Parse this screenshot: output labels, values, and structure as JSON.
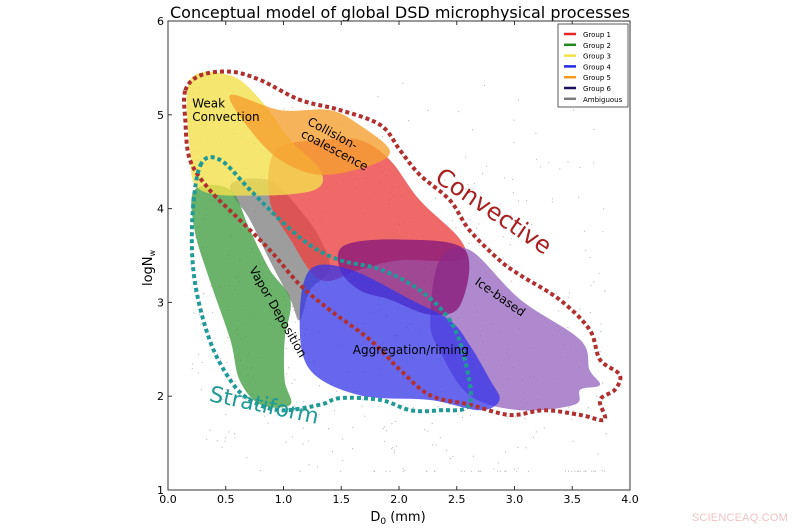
{
  "chart_data": {
    "type": "area",
    "title": "Conceptual model of global DSD microphysical processes",
    "xlabel": "D",
    "xlabel_sub": "0",
    "xlabel_unit": " (mm)",
    "ylabel": "logN",
    "ylabel_sub": "w",
    "xlim": [
      0.0,
      4.0
    ],
    "ylim": [
      1,
      6
    ],
    "xticks": [
      "0.0",
      "0.5",
      "1.0",
      "1.5",
      "2.0",
      "2.5",
      "3.0",
      "3.5",
      "4.0"
    ],
    "yticks": [
      "1",
      "2",
      "3",
      "4",
      "5",
      "6"
    ],
    "legend": {
      "placement": "top-right",
      "entries": [
        {
          "label": "Group 1",
          "color": "#e8282a"
        },
        {
          "label": "Group 2",
          "color": "#1e8a1e"
        },
        {
          "label": "Group 3",
          "color": "#f2e24a"
        },
        {
          "label": "Group 4",
          "color": "#2626e6"
        },
        {
          "label": "Group 5",
          "color": "#f59a1c"
        },
        {
          "label": "Group 6",
          "color": "#1a1060"
        },
        {
          "label": "Ambiguous",
          "color": "#7a7a7a"
        }
      ]
    },
    "regions": [
      {
        "name": "ambiguous",
        "color": "#8c8c8c",
        "opacity": 0.85,
        "points": [
          [
            0.54,
            4.25
          ],
          [
            0.88,
            4.3
          ],
          [
            1.14,
            3.99
          ],
          [
            1.32,
            3.67
          ],
          [
            1.4,
            3.35
          ],
          [
            1.23,
            3.13
          ],
          [
            1.14,
            2.81
          ],
          [
            1.06,
            3.03
          ],
          [
            0.88,
            3.45
          ],
          [
            0.71,
            3.88
          ]
        ]
      },
      {
        "name": "group-2",
        "color": "#3a9a3a",
        "opacity": 0.75,
        "points": [
          [
            0.23,
            4.2
          ],
          [
            0.54,
            4.2
          ],
          [
            0.71,
            3.77
          ],
          [
            0.88,
            3.35
          ],
          [
            1.06,
            3.03
          ],
          [
            1.01,
            2.6
          ],
          [
            1.01,
            2.17
          ],
          [
            1.06,
            1.91
          ],
          [
            0.8,
            1.91
          ],
          [
            0.62,
            2.17
          ],
          [
            0.54,
            2.6
          ],
          [
            0.36,
            3.24
          ],
          [
            0.23,
            3.77
          ]
        ]
      },
      {
        "name": "group-1",
        "color": "#ec4444",
        "opacity": 0.8,
        "points": [
          [
            0.93,
            4.62
          ],
          [
            1.32,
            4.73
          ],
          [
            1.66,
            4.73
          ],
          [
            1.92,
            4.52
          ],
          [
            2.18,
            4.09
          ],
          [
            2.53,
            3.67
          ],
          [
            2.53,
            3.45
          ],
          [
            2.01,
            3.45
          ],
          [
            1.66,
            3.35
          ],
          [
            1.32,
            3.24
          ],
          [
            1.06,
            3.67
          ],
          [
            0.88,
            4.09
          ]
        ]
      },
      {
        "name": "group-3",
        "color": "#f2e04c",
        "opacity": 0.8,
        "points": [
          [
            0.19,
            5.37
          ],
          [
            0.54,
            5.42
          ],
          [
            0.8,
            5.16
          ],
          [
            1.06,
            4.73
          ],
          [
            1.32,
            4.41
          ],
          [
            1.27,
            4.2
          ],
          [
            0.8,
            4.14
          ],
          [
            0.28,
            4.2
          ],
          [
            0.19,
            4.62
          ]
        ]
      },
      {
        "name": "group-5",
        "color": "#f5a030",
        "opacity": 0.8,
        "points": [
          [
            0.54,
            5.21
          ],
          [
            0.97,
            5.05
          ],
          [
            1.4,
            5.05
          ],
          [
            1.66,
            4.89
          ],
          [
            1.92,
            4.62
          ],
          [
            1.75,
            4.46
          ],
          [
            1.32,
            4.36
          ],
          [
            0.97,
            4.52
          ],
          [
            0.71,
            4.84
          ]
        ]
      },
      {
        "name": "ice-based",
        "color": "#9a6cc0",
        "opacity": 0.8,
        "points": [
          [
            2.35,
            3.45
          ],
          [
            2.61,
            3.56
          ],
          [
            3.05,
            3.03
          ],
          [
            3.57,
            2.6
          ],
          [
            3.65,
            2.28
          ],
          [
            3.74,
            2.12
          ],
          [
            3.57,
            2.07
          ],
          [
            3.52,
            1.91
          ],
          [
            3.05,
            1.85
          ],
          [
            2.61,
            2.01
          ],
          [
            2.35,
            2.49
          ],
          [
            2.27,
            2.81
          ]
        ]
      },
      {
        "name": "group-6",
        "color": "#8a1a7a",
        "opacity": 0.8,
        "points": [
          [
            1.53,
            3.61
          ],
          [
            2.01,
            3.67
          ],
          [
            2.57,
            3.56
          ],
          [
            2.53,
            2.97
          ],
          [
            2.27,
            2.87
          ],
          [
            1.92,
            3.03
          ],
          [
            1.66,
            3.13
          ],
          [
            1.49,
            3.35
          ]
        ]
      },
      {
        "name": "group-4",
        "color": "#3434e8",
        "opacity": 0.75,
        "points": [
          [
            1.23,
            3.35
          ],
          [
            1.58,
            3.35
          ],
          [
            2.1,
            3.03
          ],
          [
            2.44,
            2.81
          ],
          [
            2.61,
            2.55
          ],
          [
            2.79,
            2.17
          ],
          [
            2.87,
            1.96
          ],
          [
            2.7,
            1.85
          ],
          [
            2.27,
            1.96
          ],
          [
            1.66,
            2.01
          ],
          [
            1.23,
            2.28
          ],
          [
            1.14,
            2.81
          ]
        ]
      }
    ],
    "outlines": [
      {
        "name": "convective",
        "color": "#b03030",
        "points": [
          [
            0.15,
            5.26
          ],
          [
            0.28,
            5.42
          ],
          [
            0.54,
            5.46
          ],
          [
            0.8,
            5.37
          ],
          [
            1.14,
            5.16
          ],
          [
            1.49,
            5.05
          ],
          [
            1.84,
            4.89
          ],
          [
            2.01,
            4.62
          ],
          [
            2.18,
            4.36
          ],
          [
            2.44,
            4.09
          ],
          [
            2.61,
            3.77
          ],
          [
            2.87,
            3.45
          ],
          [
            3.05,
            3.29
          ],
          [
            3.39,
            3.03
          ],
          [
            3.65,
            2.71
          ],
          [
            3.74,
            2.39
          ],
          [
            3.91,
            2.23
          ],
          [
            3.87,
            2.07
          ],
          [
            3.74,
            1.96
          ],
          [
            3.78,
            1.75
          ],
          [
            3.57,
            1.8
          ],
          [
            3.26,
            1.85
          ],
          [
            2.96,
            1.8
          ],
          [
            2.61,
            1.91
          ],
          [
            2.27,
            2.01
          ],
          [
            2.01,
            2.28
          ],
          [
            1.75,
            2.6
          ],
          [
            1.4,
            2.92
          ],
          [
            1.14,
            3.19
          ],
          [
            0.88,
            3.56
          ],
          [
            0.62,
            3.88
          ],
          [
            0.36,
            4.2
          ],
          [
            0.19,
            4.52
          ],
          [
            0.15,
            4.94
          ]
        ]
      },
      {
        "name": "stratiform",
        "color": "#1f9a96",
        "points": [
          [
            0.28,
            4.46
          ],
          [
            0.45,
            4.52
          ],
          [
            0.71,
            4.2
          ],
          [
            0.97,
            3.88
          ],
          [
            1.23,
            3.61
          ],
          [
            1.49,
            3.45
          ],
          [
            1.84,
            3.35
          ],
          [
            2.18,
            3.13
          ],
          [
            2.44,
            2.81
          ],
          [
            2.57,
            2.39
          ],
          [
            2.61,
            1.91
          ],
          [
            2.35,
            1.85
          ],
          [
            2.1,
            1.85
          ],
          [
            1.84,
            1.96
          ],
          [
            1.49,
            1.98
          ],
          [
            1.32,
            1.91
          ],
          [
            0.97,
            1.85
          ],
          [
            0.71,
            1.96
          ],
          [
            0.54,
            2.17
          ],
          [
            0.36,
            2.6
          ],
          [
            0.23,
            3.24
          ],
          [
            0.21,
            3.88
          ]
        ]
      }
    ],
    "annotations": [
      {
        "key": "weak",
        "lines": [
          "Weak",
          "Convection"
        ],
        "x": 0.21,
        "y": 5.08,
        "color": "#000"
      },
      {
        "key": "collision",
        "lines": [
          "Collision-",
          "coalescence"
        ],
        "x": 1.2,
        "y": 4.9,
        "color": "#000"
      },
      {
        "key": "convective",
        "lines": [
          "Convective"
        ],
        "x": 2.3,
        "y": 4.3,
        "color": "#a82020"
      },
      {
        "key": "ice",
        "lines": [
          "Ice-based"
        ],
        "x": 2.65,
        "y": 3.2,
        "color": "#000"
      },
      {
        "key": "vapor",
        "lines": [
          "Vapor Deposition"
        ],
        "x": 0.7,
        "y": 3.35,
        "color": "#000"
      },
      {
        "key": "agg",
        "lines": [
          "Aggregation/riming"
        ],
        "x": 1.6,
        "y": 2.45,
        "color": "#000"
      },
      {
        "key": "strat",
        "lines": [
          "Stratiform"
        ],
        "x": 0.35,
        "y": 1.95,
        "color": "#1f9a96"
      }
    ]
  },
  "watermark": "SCIENCEAQ.COM"
}
